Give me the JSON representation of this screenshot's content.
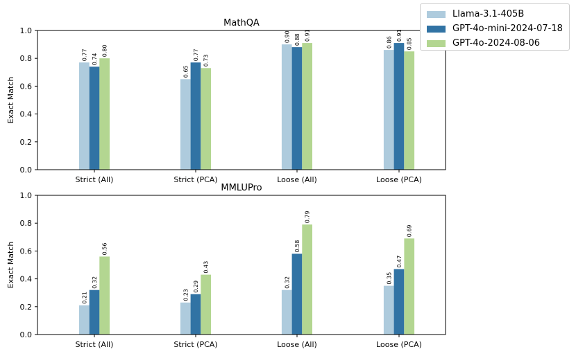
{
  "legend": {
    "items": [
      {
        "label": "Llama-3.1-405B",
        "color": "#aecbdd"
      },
      {
        "label": "GPT-4o-mini-2024-07-18",
        "color": "#3173a4"
      },
      {
        "label": "GPT-4o-2024-08-06",
        "color": "#b3d691"
      }
    ]
  },
  "chart_data": [
    {
      "type": "bar",
      "title": "MathQA",
      "xlabel": "",
      "ylabel": "Exact Match",
      "ylim": [
        0,
        1.0
      ],
      "yticks": [
        "0.0",
        "0.2",
        "0.4",
        "0.6",
        "0.8",
        "1.0"
      ],
      "categories": [
        "Strict (All)",
        "Strict (PCA)",
        "Loose (All)",
        "Loose (PCA)"
      ],
      "series": [
        {
          "name": "Llama-3.1-405B",
          "values": [
            0.77,
            0.65,
            0.9,
            0.86
          ],
          "labels": [
            "0.77",
            "0.65",
            "0.90",
            "0.86"
          ]
        },
        {
          "name": "GPT-4o-mini-2024-07-18",
          "values": [
            0.74,
            0.77,
            0.88,
            0.91
          ],
          "labels": [
            "0.74",
            "0.77",
            "0.88",
            "0.91"
          ]
        },
        {
          "name": "GPT-4o-2024-08-06",
          "values": [
            0.8,
            0.73,
            0.91,
            0.85
          ],
          "labels": [
            "0.80",
            "0.73",
            "0.91",
            "0.85"
          ]
        }
      ]
    },
    {
      "type": "bar",
      "title": "MMLUPro",
      "xlabel": "",
      "ylabel": "Exact Match",
      "ylim": [
        0,
        1.0
      ],
      "yticks": [
        "0.0",
        "0.2",
        "0.4",
        "0.6",
        "0.8",
        "1.0"
      ],
      "categories": [
        "Strict (All)",
        "Strict (PCA)",
        "Loose (All)",
        "Loose (PCA)"
      ],
      "series": [
        {
          "name": "Llama-3.1-405B",
          "values": [
            0.21,
            0.23,
            0.32,
            0.35
          ],
          "labels": [
            "0.21",
            "0.23",
            "0.32",
            "0.35"
          ]
        },
        {
          "name": "GPT-4o-mini-2024-07-18",
          "values": [
            0.32,
            0.29,
            0.58,
            0.47
          ],
          "labels": [
            "0.32",
            "0.29",
            "0.58",
            "0.47"
          ]
        },
        {
          "name": "GPT-4o-2024-08-06",
          "values": [
            0.56,
            0.43,
            0.79,
            0.69
          ],
          "labels": [
            "0.56",
            "0.43",
            "0.79",
            "0.69"
          ]
        }
      ]
    }
  ]
}
